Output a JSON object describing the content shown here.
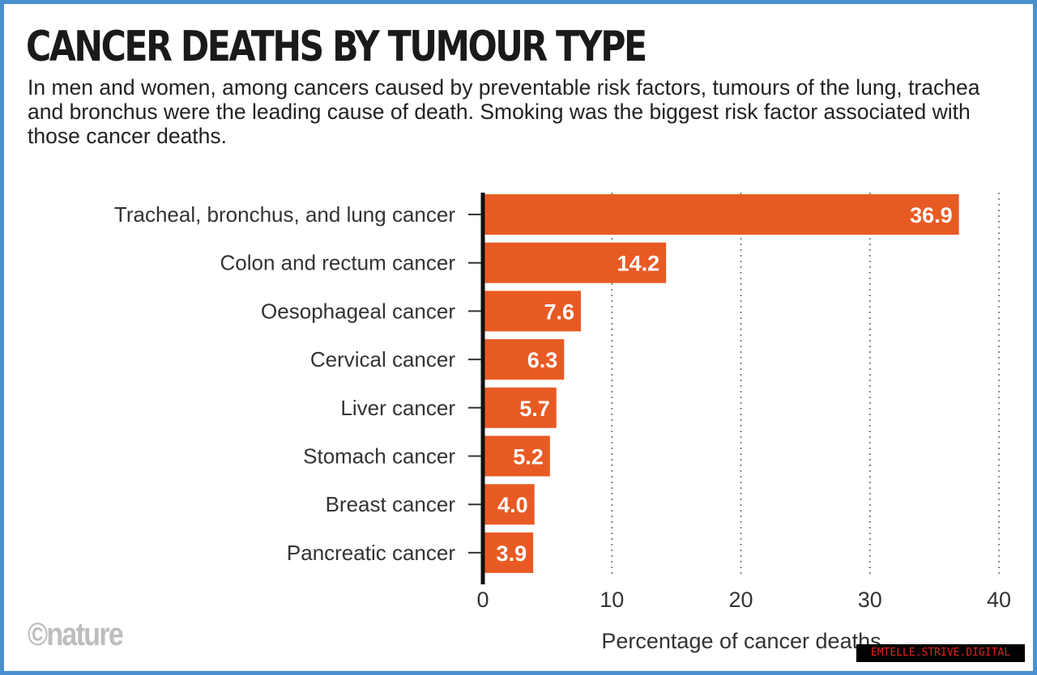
{
  "chart_data": {
    "type": "bar",
    "orientation": "horizontal",
    "title": "CANCER DEATHS BY TUMOUR TYPE",
    "subtitle": "In men and women, among cancers caused by preventable risk factors, tumours of the lung, trachea and bronchus were the leading cause of death. Smoking was the biggest risk factor associated with those cancer deaths.",
    "categories": [
      "Tracheal, bronchus, and lung cancer",
      "Colon and rectum cancer",
      "Oesophageal cancer",
      "Cervical cancer",
      "Liver cancer",
      "Stomach cancer",
      "Breast cancer",
      "Pancreatic cancer"
    ],
    "values": [
      36.9,
      14.2,
      7.6,
      6.3,
      5.7,
      5.2,
      4.0,
      3.9
    ],
    "data_labels": [
      "36.9",
      "14.2",
      "7.6",
      "6.3",
      "5.7",
      "5.2",
      "4.0",
      "3.9"
    ],
    "xlabel": "Percentage of cancer deaths",
    "xlim": [
      0,
      40
    ],
    "xticks": [
      "0",
      "10",
      "20",
      "30",
      "40"
    ],
    "grid": "vertical dotted",
    "bar_color": "#e85a24",
    "label_color": "#ffffff"
  },
  "credit": "©nature",
  "watermark": "EMTELLE.STRIVE.DIGITAL"
}
